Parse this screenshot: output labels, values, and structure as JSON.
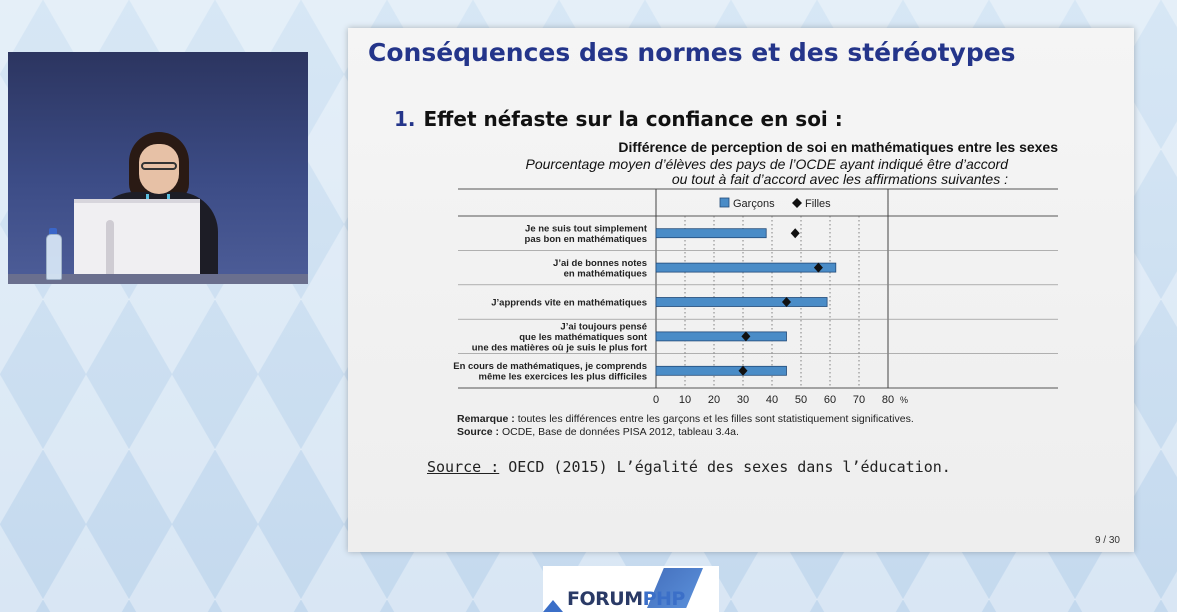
{
  "slide": {
    "title": "Conséquences des normes et des stéréotypes",
    "point_number": "1.",
    "point_text": "Effet néfaste sur la confiance en soi :",
    "source_label": "Source :",
    "source_text": "OECD (2015) L’égalité des sexes dans l’éducation.",
    "page": "9 / 30"
  },
  "chart_data": {
    "type": "bar",
    "title": "Différence de perception de soi en mathématiques entre les sexes",
    "subtitle_line1": "Pourcentage moyen d’élèves des pays de l’OCDE ayant indiqué être d’accord",
    "subtitle_line2": "ou tout à fait d’accord avec les affirmations suivantes :",
    "categories": [
      [
        "Je ne suis tout simplement",
        "pas bon en mathématiques"
      ],
      [
        "J’ai de bonnes notes",
        "en mathématiques"
      ],
      [
        "J’apprends vite en mathématiques"
      ],
      [
        "J’ai toujours pensé",
        "que les mathématiques sont",
        "une des matières où je suis le plus fort"
      ],
      [
        "En cours de mathématiques, je comprends",
        "même les exercices les plus difficiles"
      ]
    ],
    "series": [
      {
        "name": "Garçons",
        "marker": "bar",
        "color": "#4a8cc7",
        "values": [
          38,
          62,
          59,
          45,
          45
        ]
      },
      {
        "name": "Filles",
        "marker": "diamond",
        "color": "#111111",
        "values": [
          48,
          56,
          45,
          31,
          30
        ]
      }
    ],
    "xlim": [
      0,
      80
    ],
    "xticks": [
      0,
      10,
      20,
      30,
      40,
      50,
      60,
      70,
      80
    ],
    "unit": "%",
    "grid": "dotted-vertical",
    "legend": "top",
    "remark_label": "Remarque :",
    "remark_text": "toutes les différences entre les garçons et les filles sont statistiquement significatives.",
    "source_label": "Source :",
    "source_text": "OCDE, Base de données PISA 2012, tableau 3.4a."
  },
  "logo": {
    "forum": "FORUM",
    "php": "PHP"
  }
}
